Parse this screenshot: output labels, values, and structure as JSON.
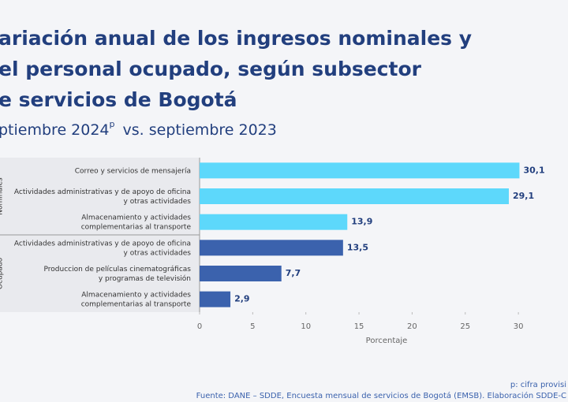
{
  "chart_data": {
    "type": "barh",
    "title_lines": [
      "ariación anual de los ingresos nominales y",
      "el personal ocupado, según subsector",
      "e servicios de Bogotá"
    ],
    "subtitle": "ptiembre 2024",
    "subtitle_sup": "p",
    "subtitle_rest": "vs. septiembre 2023",
    "groups": [
      "Nominales",
      "Ocupado"
    ],
    "categories": [
      "Correo y servicios de mensajería",
      "Actividades administrativas y de apoyo de oficina\ny otras actividades",
      "Almacenamiento y actividades\ncomplementarias al transporte",
      "Actividades administrativas y de apoyo de oficina\ny otras actividades",
      "Produccion de películas cinematográficas\ny programas de televisión",
      "Almacenamiento y actividades\ncomplementarias al transporte"
    ],
    "values": [
      30.1,
      29.1,
      13.9,
      13.5,
      7.7,
      2.9
    ],
    "value_labels": [
      "30,1",
      "29,1",
      "13,9",
      "13,5",
      "7,7",
      "2,9"
    ],
    "colors": [
      "#5dd8fb",
      "#5dd8fb",
      "#5dd8fb",
      "#3b62ad",
      "#3b62ad",
      "#3b62ad"
    ],
    "xlim": [
      0,
      34
    ],
    "xticks": [
      0,
      5,
      10,
      15,
      20,
      25,
      30
    ],
    "xlabel": "Porcentaje",
    "note": "p: cifra provisi",
    "source": "Fuente: DANE – SDDE, Encuesta mensual de servicios de Bogotá (EMSB). Elaboración SDDE-C"
  }
}
